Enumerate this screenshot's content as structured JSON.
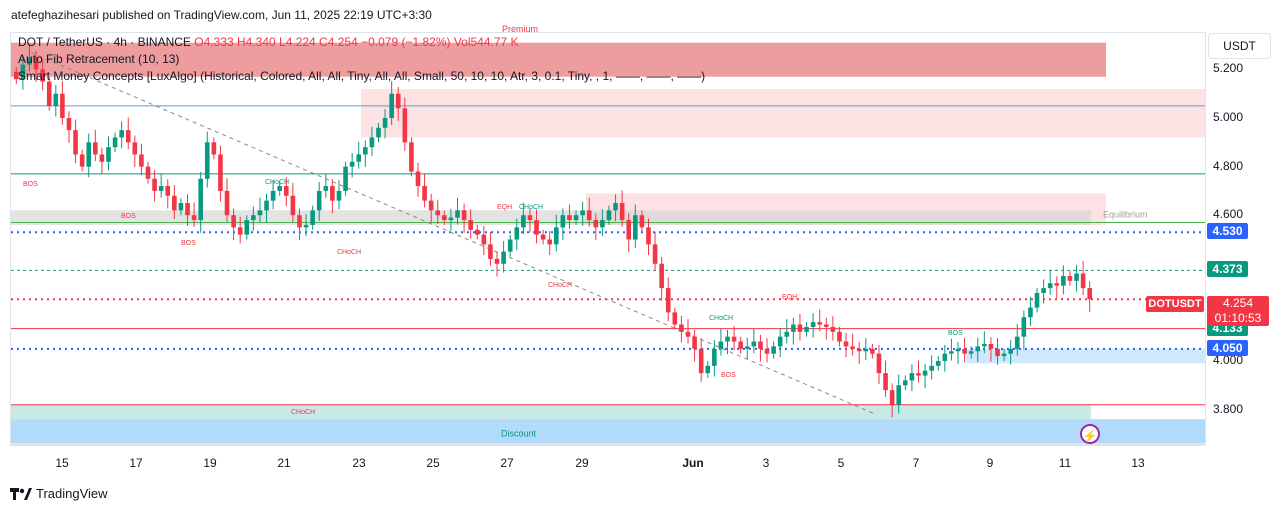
{
  "publisher_line": "atefeghazihesari published on TradingView.com, Jun 11, 2025 22:19 UTC+3:30",
  "legend": {
    "symbol": "DOT / TetherUS · 4h · BINANCE",
    "ohlc": "O4.333  H4.340  L4.224  C4.254  −0.079 (−1.82%)  Vol544.77 K",
    "indicator1": "Auto Fib Retracement (10, 13)",
    "indicator2": "Smart Money Concepts [LuxAlgo] (Historical, Colored, All, All, Tiny, All, All, Small, 50, 10, 10, Atr, 3, 0.1, Tiny, , 1, ——, ——, ——)"
  },
  "zone_labels": {
    "premium": "Premium",
    "equilibrium": "Equilibrium",
    "discount": "Discount"
  },
  "annotations": [
    {
      "text": "BOS",
      "color": "#f23645"
    },
    {
      "text": "BOS",
      "color": "#f23645"
    },
    {
      "text": "BOS",
      "color": "#f23645"
    },
    {
      "text": "CHoCH",
      "color": "#089981"
    },
    {
      "text": "CHoCH",
      "color": "#f23645"
    },
    {
      "text": "EQH",
      "color": "#f23645"
    },
    {
      "text": "CHoCH",
      "color": "#089981"
    },
    {
      "text": "CHoCH",
      "color": "#f23645"
    },
    {
      "text": "EQH",
      "color": "#f23645"
    },
    {
      "text": "CHoCH",
      "color": "#089981"
    },
    {
      "text": "BOS",
      "color": "#f23645"
    },
    {
      "text": "BOS",
      "color": "#089981"
    },
    {
      "text": "CHoCH",
      "color": "#f23645"
    }
  ],
  "price_axis": {
    "currency_button": "USDT",
    "ticks": [
      "5.200",
      "5.000",
      "4.800",
      "4.600",
      "4.000",
      "3.800"
    ],
    "badges": [
      {
        "label": "4.530",
        "color": "#2962ff"
      },
      {
        "label": "4.373",
        "color": "#089981"
      },
      {
        "label": "4.133",
        "color": "#089981"
      },
      {
        "label": "4.050",
        "color": "#2962ff"
      }
    ],
    "symbol_badge": "DOTUSDT",
    "last_price": "4.254",
    "countdown": "01:10:53"
  },
  "time_axis": [
    "15",
    "17",
    "19",
    "21",
    "23",
    "25",
    "27",
    "29",
    "Jun",
    "3",
    "5",
    "7",
    "9",
    "11",
    "13"
  ],
  "footer": {
    "brand": "TradingView"
  },
  "colors": {
    "up": "#089981",
    "down": "#f23645",
    "blue": "#2962ff"
  },
  "chart_data": {
    "type": "candlestick",
    "symbol": "DOTUSDT",
    "timeframe": "4h",
    "ylim": [
      3.65,
      5.35
    ],
    "levels": [
      {
        "price": 5.05,
        "color": "#5b9bd5"
      },
      {
        "price": 4.77,
        "color": "#089981"
      },
      {
        "price": 4.57,
        "color": "#4caf50"
      },
      {
        "price": 4.53,
        "color": "#2962ff",
        "style": "dotted"
      },
      {
        "price": 4.373,
        "color": "#089981",
        "style": "dashed"
      },
      {
        "price": 4.254,
        "color": "#f23645",
        "style": "dotted"
      },
      {
        "price": 4.133,
        "color": "#f23645"
      },
      {
        "price": 4.05,
        "color": "#2962ff",
        "style": "dotted"
      },
      {
        "price": 3.82,
        "color": "#f23645"
      }
    ],
    "zones": [
      {
        "name": "premium",
        "from": 5.17,
        "to": 5.31,
        "color": "#e57373"
      },
      {
        "name": "supply-1",
        "from": 4.92,
        "to": 5.12,
        "color": "#fbd5d5"
      },
      {
        "name": "supply-2",
        "from": 4.56,
        "to": 4.69,
        "color": "#fbd5d5"
      },
      {
        "name": "equilibrium",
        "from": 4.56,
        "to": 4.62,
        "color": "#d7d7d7"
      },
      {
        "name": "demand",
        "from": 3.99,
        "to": 4.05,
        "color": "#bbdefb"
      },
      {
        "name": "demand-green",
        "from": 3.76,
        "to": 3.82,
        "color": "#b2dfdb"
      },
      {
        "name": "discount",
        "from": 3.66,
        "to": 3.76,
        "color": "#90caf9"
      }
    ],
    "close": [
      5.16,
      5.22,
      5.25,
      5.2,
      5.15,
      5.05,
      5.1,
      5.0,
      4.95,
      4.85,
      4.8,
      4.9,
      4.85,
      4.82,
      4.88,
      4.92,
      4.95,
      4.9,
      4.85,
      4.8,
      4.75,
      4.7,
      4.72,
      4.68,
      4.62,
      4.65,
      4.6,
      4.58,
      4.75,
      4.9,
      4.85,
      4.7,
      4.6,
      4.55,
      4.52,
      4.58,
      4.6,
      4.62,
      4.66,
      4.7,
      4.72,
      4.68,
      4.6,
      4.55,
      4.56,
      4.62,
      4.7,
      4.72,
      4.66,
      4.7,
      4.8,
      4.82,
      4.85,
      4.88,
      4.92,
      4.96,
      5.0,
      5.1,
      5.04,
      4.9,
      4.78,
      4.72,
      4.66,
      4.62,
      4.6,
      4.58,
      4.59,
      4.62,
      4.58,
      4.54,
      4.52,
      4.48,
      4.42,
      4.4,
      4.45,
      4.5,
      4.55,
      4.6,
      4.58,
      4.52,
      4.5,
      4.48,
      4.55,
      4.6,
      4.58,
      4.6,
      4.62,
      4.58,
      4.55,
      4.58,
      4.62,
      4.65,
      4.58,
      4.5,
      4.6,
      4.55,
      4.48,
      4.4,
      4.3,
      4.2,
      4.15,
      4.12,
      4.1,
      4.05,
      3.95,
      3.98,
      4.05,
      4.08,
      4.1,
      4.08,
      4.05,
      4.06,
      4.08,
      4.05,
      4.03,
      4.06,
      4.1,
      4.12,
      4.15,
      4.12,
      4.14,
      4.16,
      4.15,
      4.14,
      4.12,
      4.08,
      4.06,
      4.05,
      4.04,
      4.05,
      4.03,
      3.95,
      3.88,
      3.82,
      3.9,
      3.92,
      3.95,
      3.94,
      3.96,
      3.98,
      4.0,
      4.03,
      4.04,
      4.05,
      4.03,
      4.04,
      4.06,
      4.07,
      4.05,
      4.02,
      4.03,
      4.05,
      4.1,
      4.18,
      4.22,
      4.28,
      4.3,
      4.32,
      4.31,
      4.35,
      4.33,
      4.36,
      4.3,
      4.254
    ]
  }
}
